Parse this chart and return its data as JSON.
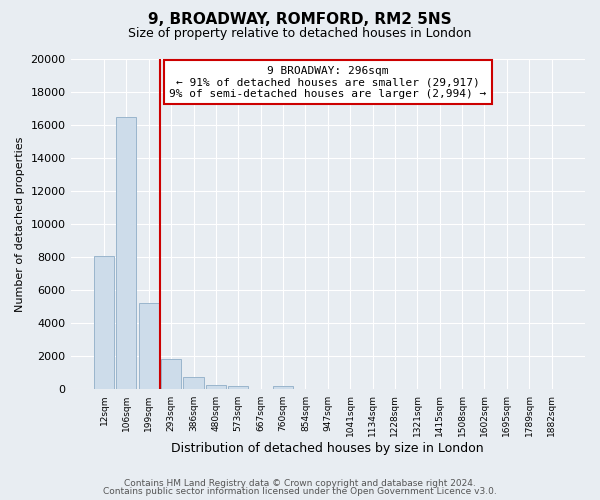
{
  "title": "9, BROADWAY, ROMFORD, RM2 5NS",
  "subtitle": "Size of property relative to detached houses in London",
  "xlabel": "Distribution of detached houses by size in London",
  "ylabel": "Number of detached properties",
  "bar_labels": [
    "12sqm",
    "106sqm",
    "199sqm",
    "293sqm",
    "386sqm",
    "480sqm",
    "573sqm",
    "667sqm",
    "760sqm",
    "854sqm",
    "947sqm",
    "1041sqm",
    "1134sqm",
    "1228sqm",
    "1321sqm",
    "1415sqm",
    "1508sqm",
    "1602sqm",
    "1695sqm",
    "1789sqm",
    "1882sqm"
  ],
  "bar_values": [
    8100,
    16500,
    5250,
    1850,
    750,
    300,
    230,
    0,
    220,
    0,
    0,
    0,
    0,
    0,
    0,
    0,
    0,
    0,
    0,
    0,
    0
  ],
  "bar_color": "#cddcea",
  "bar_edge_color": "#9ab5cc",
  "marker_label": "9 BROADWAY: 296sqm",
  "annotation_line1": "← 91% of detached houses are smaller (29,917)",
  "annotation_line2": "9% of semi-detached houses are larger (2,994) →",
  "marker_color": "#cc0000",
  "ylim": [
    0,
    20000
  ],
  "yticks": [
    0,
    2000,
    4000,
    6000,
    8000,
    10000,
    12000,
    14000,
    16000,
    18000,
    20000
  ],
  "footnote1": "Contains HM Land Registry data © Crown copyright and database right 2024.",
  "footnote2": "Contains public sector information licensed under the Open Government Licence v3.0.",
  "bg_color": "#e8edf2",
  "plot_bg_color": "#e8edf2",
  "grid_color": "#ffffff"
}
